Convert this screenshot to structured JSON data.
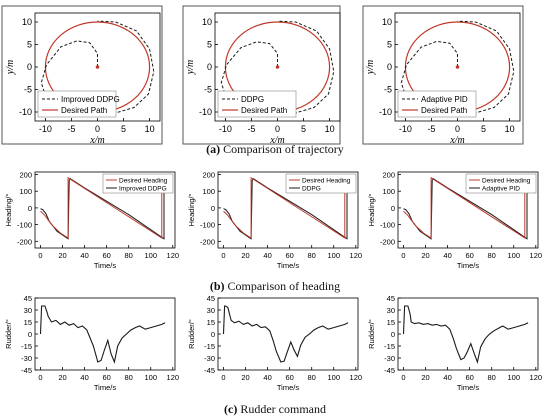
{
  "captions": {
    "a": {
      "letter": "(a)",
      "text": " Comparison of trajectory"
    },
    "b": {
      "letter": "(b)",
      "text": " Comparison of heading"
    },
    "c": {
      "letter": "(c)",
      "text": " Rudder command"
    }
  },
  "colors": {
    "desired": "#c0392b",
    "method": "#1a1a1a",
    "axis": "#000000",
    "panel_border": "#555555"
  },
  "chart_data": [
    {
      "type": "line",
      "panel": "trajectory",
      "xlabel": "x/m",
      "ylabel": "y/m",
      "xlim": [
        -12,
        12
      ],
      "ylim": [
        -12,
        12
      ],
      "xticks": [
        -10,
        -5,
        0,
        5,
        10
      ],
      "yticks": [
        -10,
        -5,
        0,
        5,
        10
      ],
      "legend": "bottom-left",
      "series": [
        {
          "name": "Improved DDPG",
          "style": "dashed",
          "x": [
            0,
            0,
            -1.5,
            -4,
            -7,
            -9.8,
            -10.8,
            -9.8,
            -7,
            -3,
            0,
            3.5,
            7,
            9.8,
            10.8,
            10,
            7.5,
            3.5,
            0
          ],
          "y": [
            0,
            3,
            5.4,
            5.8,
            4.5,
            0.5,
            -3.5,
            -7,
            -9.2,
            -10.3,
            -10.4,
            -10.2,
            -9,
            -6,
            -1,
            4,
            8,
            10,
            10.2
          ]
        },
        {
          "name": "Desired Path",
          "style": "solid",
          "x": [],
          "y": []
        }
      ]
    },
    {
      "type": "line",
      "panel": "trajectory",
      "xlabel": "x/m",
      "ylabel": "y/m",
      "xlim": [
        -12,
        12
      ],
      "ylim": [
        -12,
        12
      ],
      "xticks": [
        -10,
        -5,
        0,
        5,
        10
      ],
      "yticks": [
        -10,
        -5,
        0,
        5,
        10
      ],
      "legend": "bottom-left",
      "series": [
        {
          "name": "DDPG",
          "style": "dashed",
          "x": [
            0,
            0,
            -1.5,
            -4,
            -7,
            -9.8,
            -10.8,
            -9.8,
            -7,
            -3,
            0,
            3.5,
            7,
            9.8,
            10.8,
            10,
            7.5,
            3.5,
            0
          ],
          "y": [
            0,
            3,
            5.2,
            5.6,
            4.3,
            0.5,
            -3.5,
            -7,
            -9.3,
            -10.4,
            -10.5,
            -10.2,
            -9,
            -6,
            -1,
            4,
            8,
            10,
            10.2
          ]
        },
        {
          "name": "Desired Path",
          "style": "solid",
          "x": [],
          "y": []
        }
      ]
    },
    {
      "type": "line",
      "panel": "trajectory",
      "xlabel": "x/m",
      "ylabel": "y/m",
      "xlim": [
        -12,
        12
      ],
      "ylim": [
        -12,
        12
      ],
      "xticks": [
        -10,
        -5,
        0,
        5,
        10
      ],
      "yticks": [
        -10,
        -5,
        0,
        5,
        10
      ],
      "legend": "bottom-left",
      "series": [
        {
          "name": "Adaptive PID",
          "style": "dashed",
          "x": [
            0,
            0,
            -1.5,
            -4,
            -7,
            -9.8,
            -10.8,
            -9.8,
            -7,
            -3,
            0,
            3.5,
            7,
            9.8,
            10.8,
            10,
            7.5,
            3.5,
            0
          ],
          "y": [
            0,
            3,
            5.3,
            5.7,
            4.4,
            0.5,
            -3.5,
            -7,
            -9.2,
            -10.3,
            -10.4,
            -10.2,
            -9,
            -6,
            -1,
            4,
            8,
            10,
            10.2
          ]
        },
        {
          "name": "Desired Path",
          "style": "solid",
          "x": [],
          "y": []
        }
      ]
    },
    {
      "type": "line",
      "panel": "heading",
      "xlabel": "Time/s",
      "ylabel": "Heading/°",
      "xlim": [
        -5,
        122
      ],
      "ylim": [
        -240,
        215
      ],
      "xticks": [
        0,
        20,
        40,
        60,
        80,
        100,
        120
      ],
      "yticks": [
        -200,
        -100,
        0,
        100,
        200
      ],
      "legend": "top-right",
      "series": [
        {
          "name": "Desired Heading",
          "x": [
            0,
            4,
            10,
            18,
            25,
            25,
            110,
            110,
            113
          ],
          "y": [
            -20,
            -45,
            -100,
            -150,
            -180,
            180,
            -180,
            180,
            180
          ]
        },
        {
          "name": "Improved DDPG",
          "x": [
            0,
            2,
            5,
            8,
            15,
            25,
            26,
            27,
            40,
            80,
            112,
            112
          ],
          "y": [
            -5,
            -10,
            -35,
            -80,
            -140,
            -185,
            165,
            175,
            120,
            -40,
            -185,
            175
          ]
        }
      ]
    },
    {
      "type": "line",
      "panel": "heading",
      "xlabel": "Time/s",
      "ylabel": "Heading/°",
      "xlim": [
        -5,
        122
      ],
      "ylim": [
        -240,
        215
      ],
      "xticks": [
        0,
        20,
        40,
        60,
        80,
        100,
        120
      ],
      "yticks": [
        -200,
        -100,
        0,
        100,
        200
      ],
      "legend": "top-right",
      "series": [
        {
          "name": "Desired Heading",
          "x": [
            0,
            4,
            10,
            18,
            25,
            25,
            110,
            110,
            113
          ],
          "y": [
            -20,
            -45,
            -100,
            -150,
            -180,
            180,
            -180,
            180,
            180
          ]
        },
        {
          "name": "DDPG",
          "x": [
            0,
            2,
            5,
            8,
            15,
            25,
            26,
            27,
            40,
            80,
            112,
            112
          ],
          "y": [
            -5,
            -10,
            -35,
            -80,
            -140,
            -185,
            165,
            175,
            120,
            -40,
            -185,
            175
          ]
        }
      ]
    },
    {
      "type": "line",
      "panel": "heading",
      "xlabel": "Time/s",
      "ylabel": "Heading/°",
      "xlim": [
        -5,
        122
      ],
      "ylim": [
        -240,
        215
      ],
      "xticks": [
        0,
        20,
        40,
        60,
        80,
        100,
        120
      ],
      "yticks": [
        -200,
        -100,
        0,
        100,
        200
      ],
      "legend": "top-right",
      "series": [
        {
          "name": "Desired Heading",
          "x": [
            0,
            4,
            10,
            18,
            25,
            25,
            110,
            110,
            113
          ],
          "y": [
            -20,
            -45,
            -100,
            -150,
            -180,
            180,
            -180,
            180,
            180
          ]
        },
        {
          "name": "Adaptive PID",
          "x": [
            0,
            2,
            5,
            8,
            15,
            25,
            26,
            27,
            40,
            80,
            112,
            112
          ],
          "y": [
            -5,
            -10,
            -35,
            -80,
            -140,
            -185,
            165,
            175,
            120,
            -40,
            -185,
            175
          ]
        }
      ]
    },
    {
      "type": "line",
      "panel": "rudder",
      "xlabel": "Time/s",
      "ylabel": "Rudder/°",
      "xlim": [
        -5,
        122
      ],
      "ylim": [
        -45,
        45
      ],
      "xticks": [
        0,
        20,
        40,
        60,
        80,
        100,
        120
      ],
      "yticks": [
        -45,
        -30,
        -15,
        0,
        15,
        30,
        45
      ],
      "series": [
        {
          "name": "",
          "x": [
            0,
            1,
            2,
            4,
            6,
            7,
            10,
            14,
            18,
            22,
            26,
            30,
            34,
            38,
            42,
            45,
            48,
            52,
            55,
            58,
            61,
            64,
            67,
            70,
            74,
            78,
            82,
            86,
            90,
            95,
            100,
            105,
            110,
            113
          ],
          "y": [
            0,
            35,
            35,
            35,
            27,
            22,
            15,
            17,
            12,
            15,
            11,
            13,
            8,
            10,
            5,
            -5,
            -15,
            -35,
            -33,
            -20,
            -8,
            -25,
            -35,
            -15,
            -5,
            0,
            5,
            8,
            10,
            6,
            8,
            10,
            12,
            14
          ]
        }
      ]
    },
    {
      "type": "line",
      "panel": "rudder",
      "xlabel": "Time/s",
      "ylabel": "Rudder/°",
      "xlim": [
        -5,
        122
      ],
      "ylim": [
        -45,
        45
      ],
      "xticks": [
        0,
        20,
        40,
        60,
        80,
        100,
        120
      ],
      "yticks": [
        -45,
        -30,
        -15,
        0,
        15,
        30,
        45
      ],
      "series": [
        {
          "name": "",
          "x": [
            0,
            1,
            2,
            4,
            6,
            7,
            10,
            14,
            18,
            22,
            26,
            30,
            34,
            38,
            42,
            45,
            48,
            52,
            55,
            58,
            61,
            64,
            67,
            70,
            74,
            78,
            82,
            86,
            90,
            95,
            100,
            105,
            110,
            113
          ],
          "y": [
            0,
            35,
            35,
            33,
            22,
            17,
            14,
            16,
            12,
            14,
            10,
            12,
            8,
            9,
            4,
            -8,
            -22,
            -35,
            -34,
            -22,
            -10,
            -20,
            -28,
            -14,
            -4,
            0,
            5,
            8,
            10,
            6,
            8,
            10,
            12,
            14
          ]
        }
      ]
    },
    {
      "type": "line",
      "panel": "rudder",
      "xlabel": "Time/s",
      "ylabel": "Rudder/°",
      "xlim": [
        -5,
        122
      ],
      "ylim": [
        -45,
        45
      ],
      "xticks": [
        0,
        20,
        40,
        60,
        80,
        100,
        120
      ],
      "yticks": [
        -45,
        -30,
        -15,
        0,
        15,
        30,
        45
      ],
      "series": [
        {
          "name": "",
          "x": [
            0,
            1,
            2,
            4,
            6,
            7,
            10,
            14,
            18,
            22,
            26,
            30,
            34,
            38,
            42,
            45,
            48,
            52,
            55,
            58,
            61,
            64,
            67,
            70,
            74,
            78,
            82,
            86,
            90,
            95,
            100,
            105,
            110,
            113
          ],
          "y": [
            0,
            35,
            35,
            35,
            25,
            15,
            13,
            14,
            12,
            13,
            11,
            12,
            10,
            11,
            6,
            -5,
            -18,
            -32,
            -30,
            -22,
            -12,
            -24,
            -35,
            -16,
            -6,
            0,
            4,
            7,
            10,
            6,
            8,
            10,
            12,
            14
          ]
        }
      ]
    }
  ]
}
